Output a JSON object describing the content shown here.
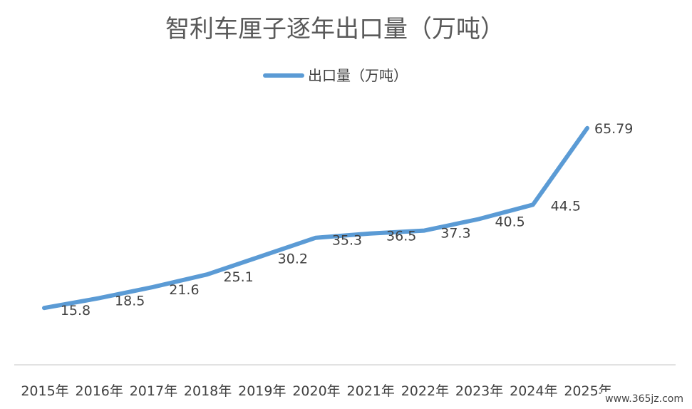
{
  "chart_data": {
    "type": "line",
    "title": "智利车厘子逐年出口量（万吨）",
    "categories": [
      "2015年",
      "2016年",
      "2017年",
      "2018年",
      "2019年",
      "2020年",
      "2021年",
      "2022年",
      "2023年",
      "2024年",
      "2025年"
    ],
    "series": [
      {
        "name": "出口量（万吨）",
        "values": [
          15.8,
          18.5,
          21.6,
          25.1,
          30.2,
          35.3,
          36.5,
          37.3,
          40.5,
          44.5,
          65.79
        ],
        "labels": [
          "15.8",
          "18.5",
          "21.6",
          "25.1",
          "30.2",
          "35.3",
          "36.5",
          "37.3",
          "40.5",
          "44.5",
          "65.79"
        ]
      }
    ],
    "ylim": [
      0,
      80
    ],
    "grid": false,
    "legend": "top",
    "line_color": "#5b9bd5"
  },
  "watermark": "www.365jz.com"
}
